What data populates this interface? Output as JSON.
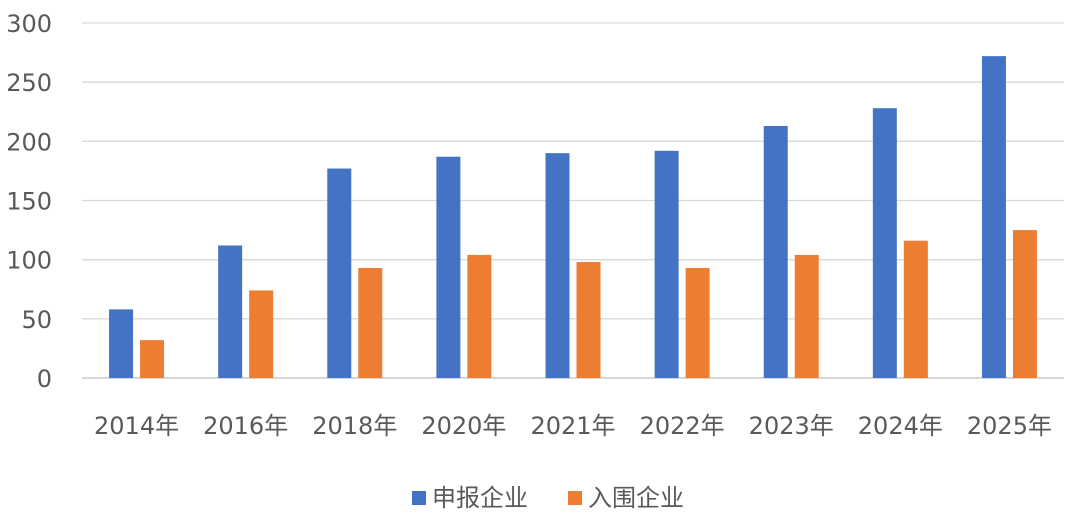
{
  "chart_data": {
    "type": "bar",
    "categories": [
      "2014年",
      "2016年",
      "2018年",
      "2020年",
      "2021年",
      "2022年",
      "2023年",
      "2024年",
      "2025年"
    ],
    "series": [
      {
        "name": "申报企业",
        "values": [
          58,
          112,
          177,
          187,
          190,
          192,
          213,
          228,
          272
        ],
        "color": "#4472C4"
      },
      {
        "name": "入围企业",
        "values": [
          32,
          74,
          93,
          104,
          98,
          93,
          104,
          116,
          125
        ],
        "color": "#ED7D31"
      }
    ],
    "ylim": [
      0,
      300
    ],
    "yticks": [
      "0",
      "50",
      "100",
      "150",
      "200",
      "250",
      "300"
    ],
    "grid": true,
    "legend": "bottom-center",
    "gridline_color": "#D9D9D9",
    "axis_line_color": "#BFBFBF"
  }
}
